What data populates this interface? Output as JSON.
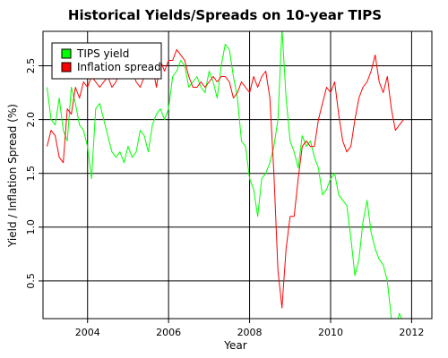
{
  "chart_data": {
    "type": "line",
    "title": "Historical Yields/Spreads on 10-year TIPS",
    "xlabel": "Year",
    "ylabel": "Yield / Inflation Spread (%)",
    "xlim": [
      2002.9,
      2012.5
    ],
    "ylim": [
      0.15,
      2.82
    ],
    "grid": true,
    "legend_position": "top-left",
    "x_ticks": [
      2004,
      2006,
      2008,
      2010,
      2012
    ],
    "x_tick_labels": [
      "2004",
      "2006",
      "2008",
      "2010",
      "2012"
    ],
    "y_ticks": [
      0.5,
      1.0,
      1.5,
      2.0,
      2.5
    ],
    "y_tick_labels": [
      "0.5",
      "1.0",
      "1.5",
      "2.0",
      "2.5"
    ],
    "series": [
      {
        "name": "TIPS yield",
        "color": "#00ff00",
        "x": [
          2003.0,
          2003.1,
          2003.2,
          2003.3,
          2003.4,
          2003.5,
          2003.6,
          2003.7,
          2003.8,
          2003.9,
          2004.0,
          2004.1,
          2004.2,
          2004.3,
          2004.4,
          2004.5,
          2004.6,
          2004.7,
          2004.8,
          2004.9,
          2005.0,
          2005.1,
          2005.2,
          2005.3,
          2005.4,
          2005.5,
          2005.6,
          2005.7,
          2005.8,
          2005.9,
          2006.0,
          2006.1,
          2006.2,
          2006.3,
          2006.4,
          2006.5,
          2006.6,
          2006.7,
          2006.8,
          2006.9,
          2007.0,
          2007.1,
          2007.2,
          2007.3,
          2007.4,
          2007.5,
          2007.6,
          2007.7,
          2007.8,
          2007.9,
          2008.0,
          2008.1,
          2008.2,
          2008.3,
          2008.4,
          2008.5,
          2008.6,
          2008.7,
          2008.8,
          2008.9,
          2009.0,
          2009.1,
          2009.2,
          2009.3,
          2009.4,
          2009.5,
          2009.6,
          2009.7,
          2009.8,
          2009.9,
          2010.0,
          2010.1,
          2010.2,
          2010.3,
          2010.4,
          2010.5,
          2010.6,
          2010.7,
          2010.8,
          2010.9,
          2011.0,
          2011.1,
          2011.2,
          2011.3,
          2011.4,
          2011.5,
          2011.6,
          2011.7,
          2011.8
        ],
        "values": [
          2.3,
          2.0,
          1.95,
          2.2,
          1.9,
          1.8,
          2.3,
          2.15,
          1.95,
          1.9,
          1.75,
          1.45,
          2.1,
          2.15,
          2.0,
          1.85,
          1.7,
          1.65,
          1.7,
          1.6,
          1.75,
          1.65,
          1.7,
          1.9,
          1.85,
          1.7,
          1.95,
          2.05,
          2.1,
          2.0,
          2.1,
          2.4,
          2.45,
          2.55,
          2.5,
          2.3,
          2.35,
          2.4,
          2.3,
          2.25,
          2.45,
          2.35,
          2.2,
          2.5,
          2.7,
          2.65,
          2.4,
          2.2,
          1.8,
          1.75,
          1.45,
          1.35,
          1.1,
          1.45,
          1.5,
          1.6,
          1.75,
          2.0,
          2.85,
          2.2,
          1.8,
          1.7,
          1.55,
          1.85,
          1.75,
          1.8,
          1.65,
          1.55,
          1.3,
          1.35,
          1.45,
          1.5,
          1.3,
          1.25,
          1.2,
          0.9,
          0.55,
          0.7,
          1.05,
          1.25,
          0.95,
          0.8,
          0.7,
          0.65,
          0.5,
          0.15,
          0.05,
          0.2,
          0.1
        ]
      },
      {
        "name": "Inflation spread",
        "color": "#ff0000",
        "x": [
          2003.0,
          2003.1,
          2003.2,
          2003.3,
          2003.4,
          2003.5,
          2003.6,
          2003.7,
          2003.8,
          2003.9,
          2004.0,
          2004.1,
          2004.2,
          2004.3,
          2004.4,
          2004.5,
          2004.6,
          2004.7,
          2004.8,
          2004.9,
          2005.0,
          2005.1,
          2005.2,
          2005.3,
          2005.4,
          2005.5,
          2005.6,
          2005.7,
          2005.8,
          2005.9,
          2006.0,
          2006.1,
          2006.2,
          2006.3,
          2006.4,
          2006.5,
          2006.6,
          2006.7,
          2006.8,
          2006.9,
          2007.0,
          2007.1,
          2007.2,
          2007.3,
          2007.4,
          2007.5,
          2007.6,
          2007.7,
          2007.8,
          2007.9,
          2008.0,
          2008.1,
          2008.2,
          2008.3,
          2008.4,
          2008.5,
          2008.6,
          2008.7,
          2008.8,
          2008.9,
          2009.0,
          2009.1,
          2009.2,
          2009.3,
          2009.4,
          2009.5,
          2009.6,
          2009.7,
          2009.8,
          2009.9,
          2010.0,
          2010.1,
          2010.2,
          2010.3,
          2010.4,
          2010.5,
          2010.6,
          2010.7,
          2010.8,
          2010.9,
          2011.0,
          2011.1,
          2011.2,
          2011.3,
          2011.4,
          2011.5,
          2011.6,
          2011.7,
          2011.8
        ],
        "values": [
          1.75,
          1.9,
          1.85,
          1.65,
          1.6,
          2.1,
          2.05,
          2.3,
          2.2,
          2.35,
          2.3,
          2.4,
          2.35,
          2.3,
          2.35,
          2.4,
          2.3,
          2.35,
          2.45,
          2.4,
          2.7,
          2.45,
          2.35,
          2.3,
          2.4,
          2.55,
          2.5,
          2.3,
          2.55,
          2.45,
          2.55,
          2.55,
          2.65,
          2.6,
          2.55,
          2.4,
          2.3,
          2.3,
          2.35,
          2.3,
          2.35,
          2.4,
          2.35,
          2.4,
          2.4,
          2.35,
          2.2,
          2.25,
          2.35,
          2.3,
          2.25,
          2.4,
          2.3,
          2.4,
          2.45,
          2.2,
          1.5,
          0.6,
          0.25,
          0.8,
          1.1,
          1.1,
          1.45,
          1.75,
          1.8,
          1.75,
          1.75,
          2.0,
          2.15,
          2.3,
          2.25,
          2.35,
          2.05,
          1.8,
          1.7,
          1.75,
          2.0,
          2.2,
          2.3,
          2.35,
          2.45,
          2.6,
          2.35,
          2.25,
          2.4,
          2.1,
          1.9,
          1.95,
          2.0
        ]
      }
    ]
  }
}
